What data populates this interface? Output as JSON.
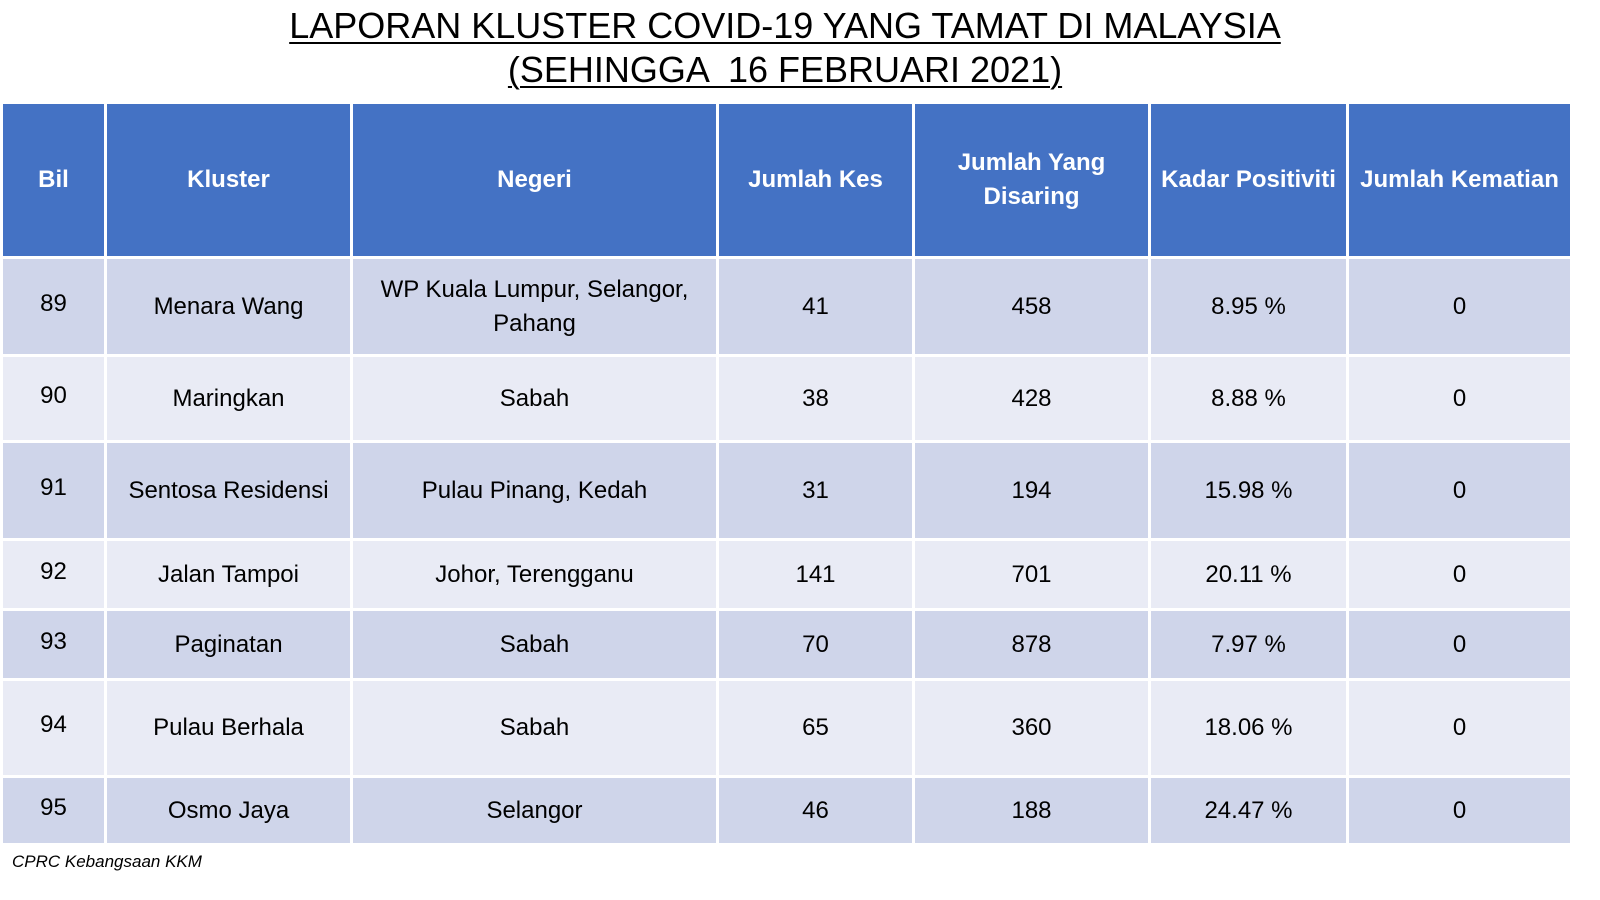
{
  "title": {
    "line1": "LAPORAN KLUSTER COVID-19 YANG TAMAT DI MALAYSIA",
    "line2": "(SEHINGGA  16 FEBRUARI 2021)"
  },
  "table": {
    "headers": [
      "Bil",
      "Kluster",
      "Negeri",
      "Jumlah Kes",
      "Jumlah Yang Disaring",
      "Kadar Positiviti",
      "Jumlah Kematian"
    ],
    "rows": [
      [
        "89",
        "Menara Wang",
        "WP Kuala Lumpur, Selangor, Pahang",
        "41",
        "458",
        "8.95 %",
        "0"
      ],
      [
        "90",
        "Maringkan",
        "Sabah",
        "38",
        "428",
        "8.88 %",
        "0"
      ],
      [
        "91",
        "Sentosa Residensi",
        "Pulau Pinang, Kedah",
        "31",
        "194",
        "15.98 %",
        "0"
      ],
      [
        "92",
        "Jalan Tampoi",
        "Johor, Terengganu",
        "141",
        "701",
        "20.11 %",
        "0"
      ],
      [
        "93",
        "Paginatan",
        "Sabah",
        "70",
        "878",
        "7.97 %",
        "0"
      ],
      [
        "94",
        "Pulau Berhala",
        "Sabah",
        "65",
        "360",
        "18.06 %",
        "0"
      ],
      [
        "95",
        "Osmo Jaya",
        "Selangor",
        "46",
        "188",
        "24.47 %",
        "0"
      ]
    ]
  },
  "colors": {
    "header_bg": "#4472c4",
    "row_dark": "#cfd5ea",
    "row_light": "#e9ebf5"
  },
  "footer": {
    "source": "CPRC Kebangsaan KKM"
  }
}
